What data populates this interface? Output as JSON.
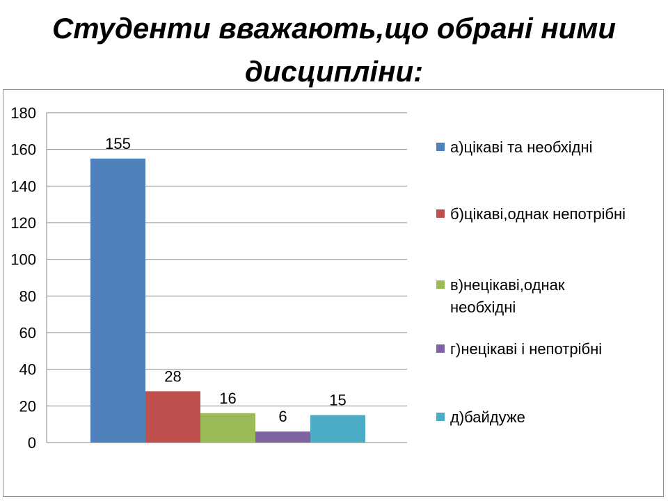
{
  "slide": {
    "title_line1": "Студенти вважають,що обрані ними",
    "title_line2": "дисципліни:"
  },
  "chart_data": {
    "type": "bar",
    "categories": [
      "а)цікаві та необхідні",
      "б)цікаві,однак непотрібні",
      "в)нецікаві,однак необхідні",
      "г)нецікаві і непотрібні",
      "д)байдуже"
    ],
    "values": [
      155,
      28,
      16,
      6,
      15
    ],
    "colors": [
      "#4f81bd",
      "#c0504d",
      "#9bbb59",
      "#8064a2",
      "#4bacc6"
    ],
    "ylim": [
      0,
      180
    ],
    "yticks": [
      0,
      20,
      40,
      60,
      80,
      100,
      120,
      140,
      160,
      180
    ],
    "grid": true,
    "data_labels": true,
    "legend": {
      "placement": "right",
      "entries": [
        {
          "lines": [
            "а)цікаві та необхідні"
          ],
          "color": "#4f81bd"
        },
        {
          "lines": [
            "б)цікаві,однак непотрібні"
          ],
          "color": "#c0504d"
        },
        {
          "lines": [
            "в)нецікаві,однак",
            "необхідні"
          ],
          "color": "#9bbb59"
        },
        {
          "lines": [
            "г)нецікаві і непотрібні"
          ],
          "color": "#8064a2"
        },
        {
          "lines": [
            "д)байдуже"
          ],
          "color": "#4bacc6"
        }
      ]
    }
  }
}
